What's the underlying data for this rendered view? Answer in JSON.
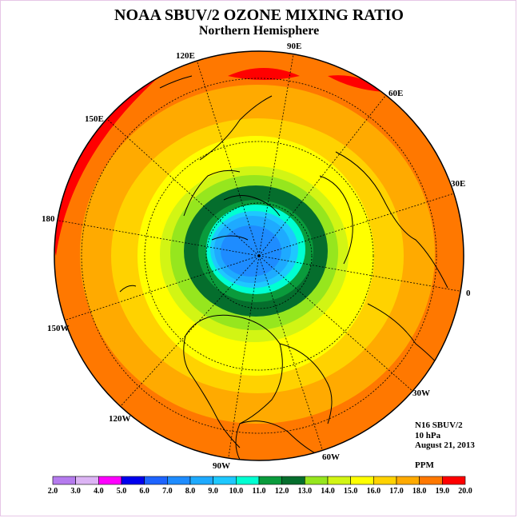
{
  "title": "NOAA SBUV/2 OZONE MIXING RATIO",
  "subtitle": "Northern Hemisphere",
  "meridian_labels": [
    "120E",
    "90E",
    "60E",
    "150E",
    "30E",
    "180",
    "0",
    "150W",
    "30W",
    "120W",
    "60W",
    "90W"
  ],
  "info": {
    "instrument": "N16 SBUV/2",
    "level": "10 hPa",
    "date": "August 21, 2013",
    "units": "PPM"
  },
  "colorbar": {
    "labels": [
      "2.0",
      "3.0",
      "4.0",
      "5.0",
      "6.0",
      "7.0",
      "8.0",
      "9.0",
      "10.0",
      "11.0",
      "12.0",
      "13.0",
      "14.0",
      "15.0",
      "16.0",
      "17.0",
      "18.0",
      "19.0",
      "20.0"
    ],
    "colors": [
      "#b57bee",
      "#dcb4f4",
      "#ff00ff",
      "#0000ee",
      "#1e64ff",
      "#1e8cff",
      "#1eaaff",
      "#1ec8ff",
      "#00ffd2",
      "#0a9b3c",
      "#056e2d",
      "#96e61e",
      "#d2f514",
      "#ffff00",
      "#ffd200",
      "#ffaa00",
      "#ff7800",
      "#ff0000",
      "#8c5a3c"
    ]
  }
}
